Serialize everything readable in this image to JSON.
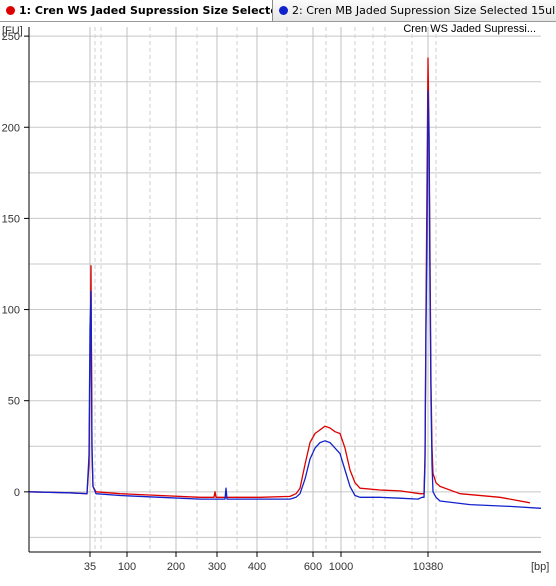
{
  "tabs": [
    {
      "label": "1: Cren WS Jaded Supression Size Selecte...",
      "color": "#dd0000",
      "active": true
    },
    {
      "label": "2: Cren MB Jaded Supression Size Selected 15ul",
      "color": "#1122cc",
      "active": false
    }
  ],
  "chart_data": {
    "type": "line",
    "title": "Cren WS Jaded Supressi...",
    "ylabel": "[FU]",
    "xlabel": "[bp]",
    "ylim": [
      -33,
      255
    ],
    "grid": true,
    "y_ticks": [
      0,
      50,
      100,
      150,
      200,
      250
    ],
    "x_ticks": [
      "35",
      "100",
      "200",
      "300",
      "400",
      "600",
      "1000",
      "10380"
    ],
    "x_tick_positions": [
      90,
      127,
      176,
      217,
      257,
      313,
      341,
      428
    ],
    "x_range": [
      29,
      541
    ],
    "series": [
      {
        "name": "1: Cren WS Jaded Supression Size Selecte...",
        "color": "#dd0000",
        "points": [
          [
            29,
            0
          ],
          [
            70,
            -0.5
          ],
          [
            87,
            -1
          ],
          [
            89,
            15
          ],
          [
            90,
            60
          ],
          [
            91,
            124
          ],
          [
            92,
            20
          ],
          [
            93,
            3
          ],
          [
            96,
            0
          ],
          [
            120,
            -1
          ],
          [
            160,
            -2
          ],
          [
            200,
            -3
          ],
          [
            214,
            -3
          ],
          [
            215,
            0
          ],
          [
            216,
            -3
          ],
          [
            260,
            -3
          ],
          [
            290,
            -2.5
          ],
          [
            296,
            -1
          ],
          [
            300,
            2
          ],
          [
            305,
            15
          ],
          [
            310,
            27
          ],
          [
            315,
            32
          ],
          [
            320,
            34
          ],
          [
            325,
            36
          ],
          [
            330,
            35
          ],
          [
            335,
            33
          ],
          [
            340,
            32
          ],
          [
            345,
            24
          ],
          [
            350,
            12
          ],
          [
            355,
            5
          ],
          [
            360,
            2
          ],
          [
            380,
            1
          ],
          [
            400,
            0.5
          ],
          [
            420,
            -1
          ],
          [
            424,
            -1
          ],
          [
            425,
            20
          ],
          [
            426,
            100
          ],
          [
            427,
            170
          ],
          [
            428,
            238
          ],
          [
            429,
            200
          ],
          [
            430,
            130
          ],
          [
            431,
            60
          ],
          [
            432,
            25
          ],
          [
            433,
            10
          ],
          [
            436,
            5
          ],
          [
            440,
            3
          ],
          [
            460,
            -1
          ],
          [
            500,
            -3
          ],
          [
            530,
            -6
          ]
        ]
      },
      {
        "name": "2: Cren MB Jaded Supression Size Selected 15ul",
        "color": "#1122cc",
        "points": [
          [
            29,
            0
          ],
          [
            70,
            -0.5
          ],
          [
            87,
            -1
          ],
          [
            89,
            20
          ],
          [
            90,
            90
          ],
          [
            91,
            110
          ],
          [
            92,
            25
          ],
          [
            93,
            3
          ],
          [
            96,
            -1
          ],
          [
            120,
            -2
          ],
          [
            160,
            -3
          ],
          [
            200,
            -4
          ],
          [
            225,
            -4
          ],
          [
            226,
            2
          ],
          [
            227,
            -4
          ],
          [
            260,
            -4
          ],
          [
            290,
            -4
          ],
          [
            296,
            -3
          ],
          [
            300,
            -1
          ],
          [
            305,
            7
          ],
          [
            310,
            18
          ],
          [
            315,
            24
          ],
          [
            320,
            27
          ],
          [
            325,
            28
          ],
          [
            330,
            27
          ],
          [
            335,
            24
          ],
          [
            340,
            21
          ],
          [
            345,
            12
          ],
          [
            350,
            3
          ],
          [
            355,
            -2
          ],
          [
            360,
            -3
          ],
          [
            380,
            -3
          ],
          [
            400,
            -3.5
          ],
          [
            418,
            -4
          ],
          [
            422,
            -3
          ],
          [
            424,
            -3
          ],
          [
            425,
            15
          ],
          [
            426,
            90
          ],
          [
            427,
            140
          ],
          [
            428,
            220
          ],
          [
            429,
            195
          ],
          [
            430,
            110
          ],
          [
            431,
            50
          ],
          [
            432,
            15
          ],
          [
            433,
            0
          ],
          [
            436,
            -3
          ],
          [
            440,
            -5
          ],
          [
            470,
            -7
          ],
          [
            510,
            -8
          ],
          [
            541,
            -9
          ]
        ]
      }
    ]
  }
}
